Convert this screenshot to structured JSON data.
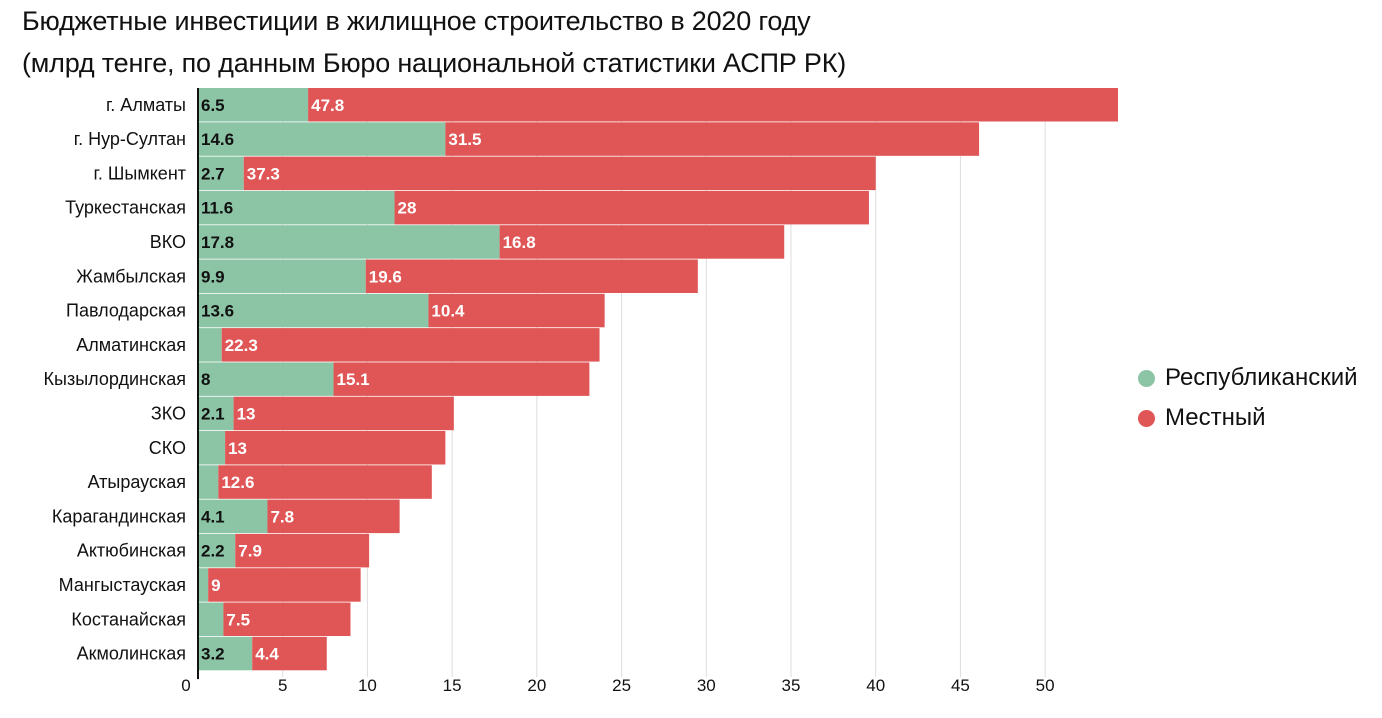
{
  "chart_data": {
    "type": "bar",
    "stacked": true,
    "orientation": "horizontal",
    "title": "Бюджетные инвестиции в жилищное строительство в 2020 году",
    "subtitle": "(млрд тенге, по данным Бюро национальной статистики АСПР РК)",
    "categories": [
      "г. Алматы",
      "г. Нур-Султан",
      "г. Шымкент",
      "Туркестанская",
      "ВКО",
      "Жамбылская",
      "Павлодарская",
      "Алматинская",
      "Кызылординская",
      "ЗКО",
      "СКО",
      "Атырауская",
      "Карагандинская",
      "Актюбинская",
      "Мангыстауская",
      "Костанайская",
      "Акмолинская"
    ],
    "series": [
      {
        "name": "Республиканский",
        "color": "#8cc5a5",
        "values": [
          6.5,
          14.6,
          2.7,
          11.6,
          17.8,
          9.9,
          13.6,
          1.4,
          8,
          2.1,
          1.6,
          1.2,
          4.1,
          2.2,
          0.6,
          1.5,
          3.2
        ],
        "labels": [
          "6.5",
          "14.6",
          "2.7",
          "11.6",
          "17.8",
          "9.9",
          "13.6",
          "",
          "8",
          "2.1",
          "",
          "",
          "4.1",
          "2.2",
          "",
          "",
          "3.2"
        ]
      },
      {
        "name": "Местный",
        "color": "#e05555",
        "values": [
          47.8,
          31.5,
          37.3,
          28,
          16.8,
          19.6,
          10.4,
          22.3,
          15.1,
          13,
          13,
          12.6,
          7.8,
          7.9,
          9,
          7.5,
          4.4
        ],
        "labels": [
          "47.8",
          "31.5",
          "37.3",
          "28",
          "16.8",
          "19.6",
          "10.4",
          "22.3",
          "15.1",
          "13",
          "13",
          "12.6",
          "7.8",
          "7.9",
          "9",
          "7.5",
          "4.4"
        ]
      }
    ],
    "xticks": [
      "0",
      "5",
      "10",
      "15",
      "20",
      "25",
      "30",
      "35",
      "40",
      "45",
      "50"
    ],
    "xlim": [
      0,
      54.3
    ],
    "grid": true,
    "legend_position": "right"
  }
}
